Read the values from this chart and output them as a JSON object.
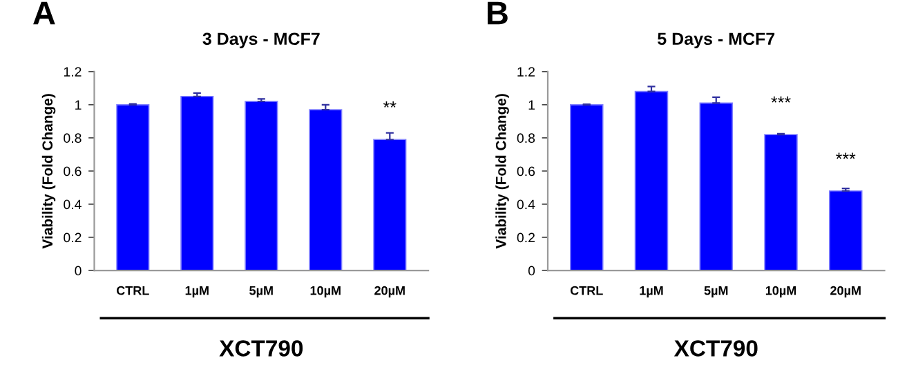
{
  "chart_data": [
    {
      "type": "bar",
      "title": "3 Days - MCF7",
      "ylabel": "Viability (Fold Change)",
      "xlabel": "XCT790",
      "categories": [
        "CTRL",
        "1µM",
        "5µM",
        "10µM",
        "20µM"
      ],
      "values": [
        1.0,
        1.05,
        1.02,
        0.97,
        0.79
      ],
      "errors": [
        0.005,
        0.02,
        0.015,
        0.03,
        0.04
      ],
      "color": "#0000ff",
      "ylim": [
        0,
        1.2
      ],
      "yticks": [
        {
          "value": 0,
          "label": "0"
        },
        {
          "value": 0.2,
          "label": "0.2"
        },
        {
          "value": 0.4,
          "label": "0.4"
        },
        {
          "value": 0.6,
          "label": "0.6"
        },
        {
          "value": 0.8,
          "label": "0.8"
        },
        {
          "value": 1,
          "label": "1"
        },
        {
          "value": 1.2,
          "label": "1.2"
        }
      ],
      "grid": false,
      "annotations": [
        "A",
        {
          "text": "**",
          "x": "20µM",
          "y": 0.79
        }
      ]
    },
    {
      "type": "bar",
      "title": "5 Days - MCF7",
      "ylabel": "Viability (Fold Change)",
      "xlabel": "XCT790",
      "categories": [
        "CTRL",
        "1µM",
        "5µM",
        "10µM",
        "20µM"
      ],
      "values": [
        1.0,
        1.08,
        1.01,
        0.82,
        0.48
      ],
      "errors": [
        0.003,
        0.03,
        0.035,
        0.005,
        0.015
      ],
      "color": "#0000ff",
      "ylim": [
        0,
        1.2
      ],
      "yticks": [
        {
          "value": 0,
          "label": "0"
        },
        {
          "value": 0.2,
          "label": "0.2"
        },
        {
          "value": 0.4,
          "label": "0.4"
        },
        {
          "value": 0.6,
          "label": "0.6"
        },
        {
          "value": 0.8,
          "label": "0.8"
        },
        {
          "value": 1,
          "label": "1"
        },
        {
          "value": 1.2,
          "label": "1.2"
        }
      ],
      "grid": false,
      "annotations": [
        "B",
        {
          "text": "***",
          "x": "10µM",
          "y": 0.82
        },
        {
          "text": "***",
          "x": "20µM",
          "y": 0.48
        }
      ]
    }
  ]
}
